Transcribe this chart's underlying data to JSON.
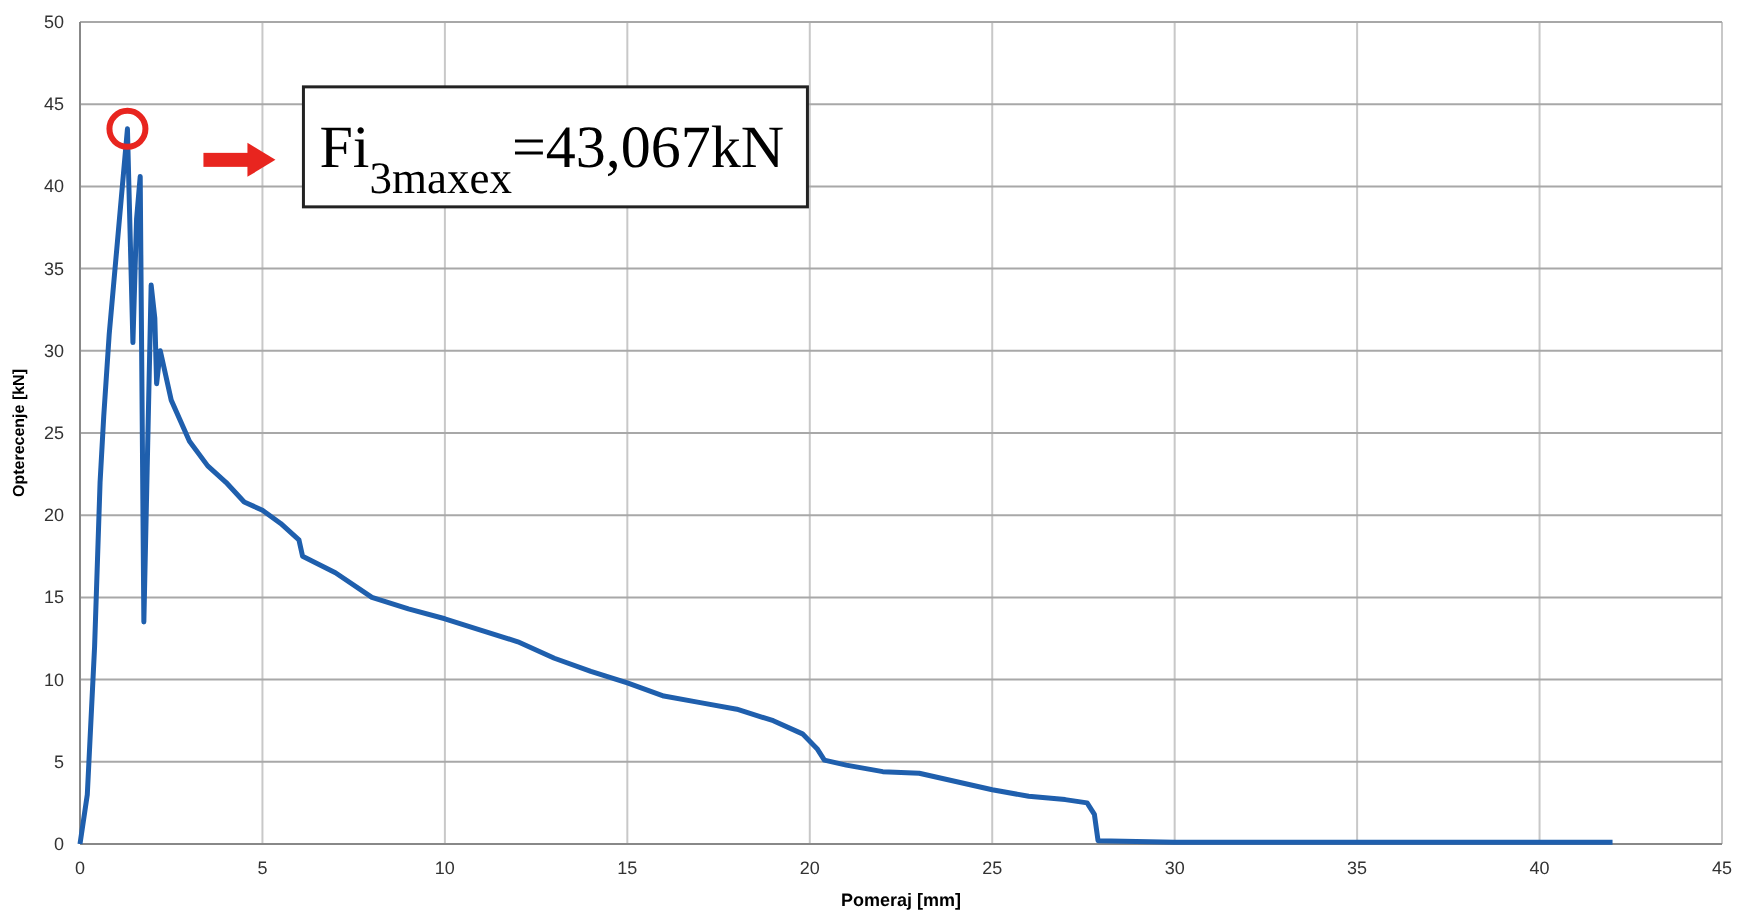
{
  "chart_data": {
    "type": "line",
    "xlabel": "Pomeraj [mm]",
    "ylabel": "Opterecenje [kN]",
    "xlim": [
      0,
      45
    ],
    "ylim": [
      0,
      50
    ],
    "xticks": [
      0,
      5,
      10,
      15,
      20,
      25,
      30,
      35,
      40,
      45
    ],
    "yticks": [
      0,
      5,
      10,
      15,
      20,
      25,
      30,
      35,
      40,
      45,
      50
    ],
    "grid": true,
    "marker": "none",
    "line_style": "solid",
    "annotations": [
      "Fi$_{3maxex}$=43,067kN"
    ],
    "series": [
      {
        "color": "#1f5fad",
        "x": [
          0,
          0.2,
          0.4,
          0.55,
          0.65,
          0.8,
          1.0,
          1.2,
          1.3,
          1.45,
          1.55,
          1.65,
          1.75,
          1.95,
          2.05,
          2.1,
          2.2,
          2.5,
          3,
          3.5,
          4,
          4.5,
          5,
          5.5,
          6,
          6.1,
          7,
          8,
          9,
          10,
          11,
          12,
          13,
          14,
          15,
          16,
          17,
          18,
          19,
          19.8,
          20.2,
          20.4,
          21,
          22,
          23,
          24,
          25,
          26,
          27,
          27.6,
          27.8,
          27.9,
          30,
          35,
          42
        ],
        "values": [
          0,
          3,
          12,
          22,
          26,
          31,
          36,
          41,
          43.5,
          30.5,
          38,
          40.6,
          13.5,
          34,
          32,
          28,
          30,
          27,
          24.5,
          23,
          22,
          20.8,
          20.3,
          19.5,
          18.5,
          17.5,
          16.5,
          15,
          14.3,
          13.7,
          13,
          12.3,
          11.3,
          10.5,
          9.8,
          9,
          8.6,
          8.2,
          7.5,
          6.7,
          5.8,
          5.1,
          4.8,
          4.4,
          4.3,
          3.8,
          3.3,
          2.9,
          2.7,
          2.5,
          1.8,
          0.2,
          0.1,
          0.1,
          0.1
        ]
      }
    ]
  }
}
